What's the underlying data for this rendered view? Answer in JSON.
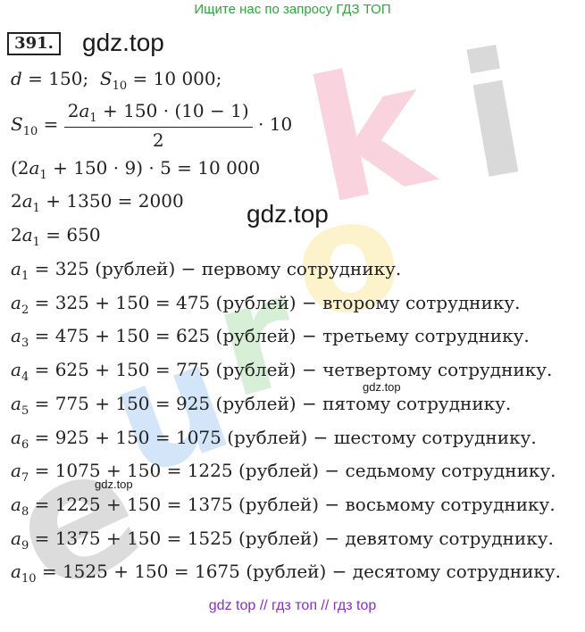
{
  "banner": "Ищите нас по запросу ГДЗ ТОП",
  "problem_number": "391.",
  "brand_big": "gdz.top",
  "brand_small": "gdz.top",
  "watermark_letters": [
    "e",
    "u",
    "r",
    "o",
    "k",
    "i"
  ],
  "lines": {
    "l1": "d = 150;  S10 = 10 000;",
    "l2_num": "2a1 + 150 · (10 − 1)",
    "l2_den": "2",
    "l3": "(2a1 + 150 · 9) · 5 = 10 000",
    "l4": "2a1 + 1350 = 2000",
    "l5": "2a1 = 650"
  },
  "terms": [
    {
      "sub": "1",
      "expr": " = 325 (рублей) − первому сотруднику."
    },
    {
      "sub": "2",
      "expr": " = 325 + 150 = 475 (рублей) − второму сотруднику."
    },
    {
      "sub": "3",
      "expr": " = 475 + 150 = 625 (рублей) − третьему сотруднику."
    },
    {
      "sub": "4",
      "expr": " = 625 + 150 = 775 (рублей) − четвертому сотруднику."
    },
    {
      "sub": "5",
      "expr": " = 775 + 150 = 925 (рублей) − пятому сотруднику."
    },
    {
      "sub": "6",
      "expr": " = 925 + 150 = 1075 (рублей) − шестому сотруднику."
    },
    {
      "sub": "7",
      "expr": " = 1075 + 150 = 1225 (рублей) − седьмому сотруднику."
    },
    {
      "sub": "8",
      "expr": " = 1225 + 150 = 1375 (рублей) − восьмому сотруднику."
    },
    {
      "sub": "9",
      "expr": " = 1375 + 150 = 1525 (рублей) − девятому сотруднику."
    },
    {
      "sub": "10",
      "expr": " = 1525 + 150 = 1675 (рублей) − десятому сотруднику."
    }
  ],
  "footer": "gdz top  //  гдз топ  //  гдз top"
}
